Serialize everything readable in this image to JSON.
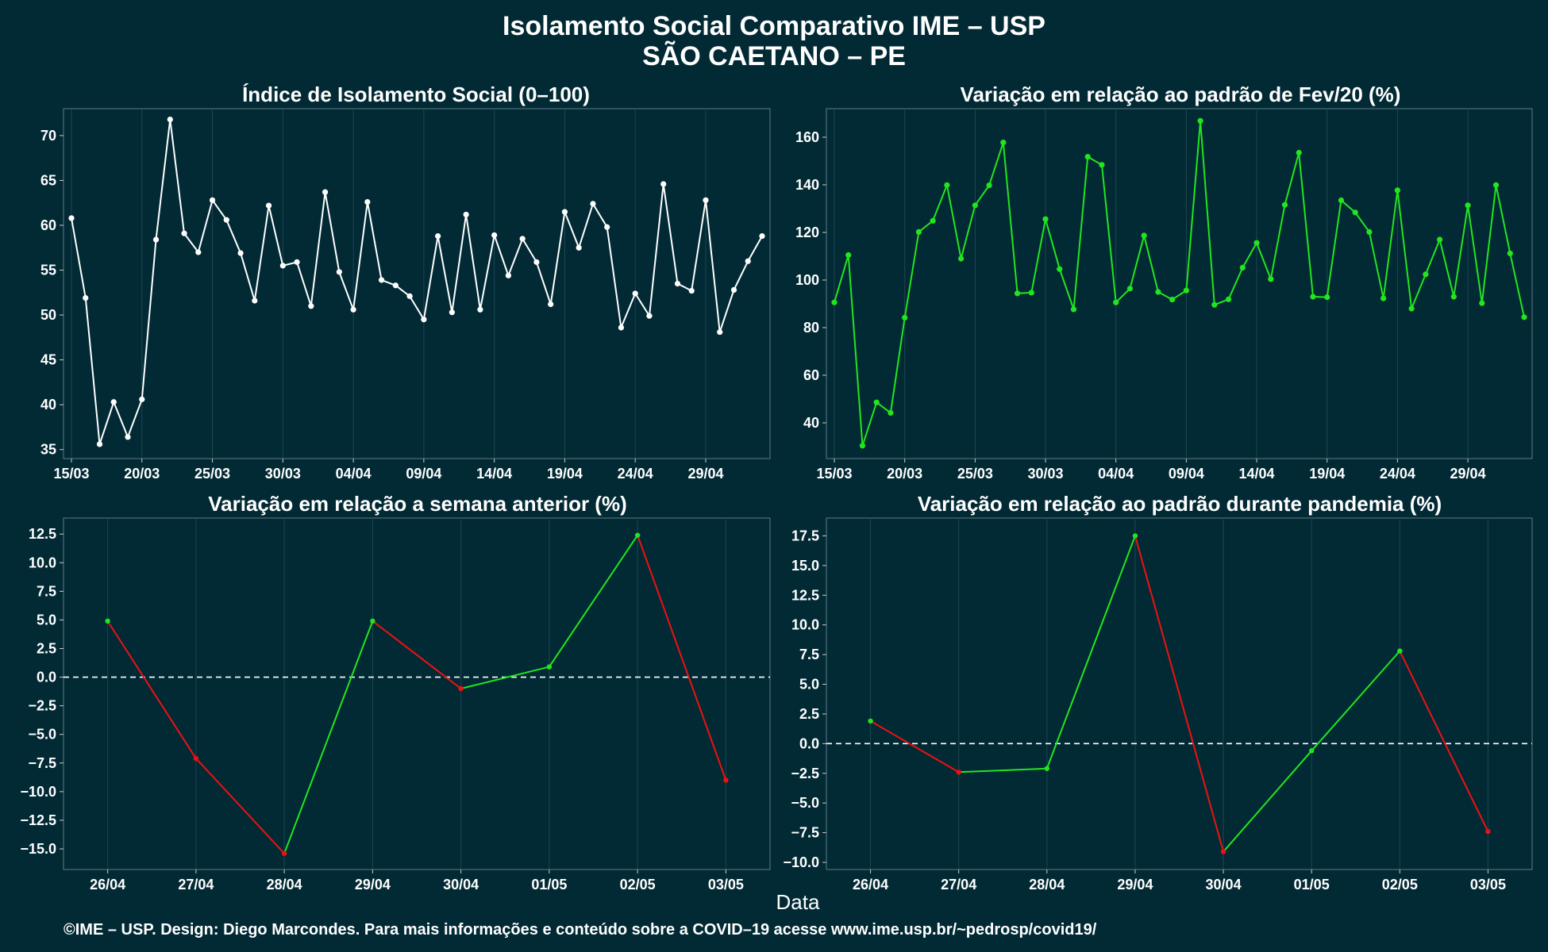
{
  "title": "Isolamento Social Comparativo IME – USP",
  "subtitle": "SÃO CAETANO – PE",
  "xlabel": "Data",
  "footer": "©IME – USP. Design: Diego Marcondes. Para mais informações e conteúdo sobre a COVID–19 acesse www.ime.usp.br/~pedrosp/covid19/",
  "colors": {
    "background": "#022a35",
    "panel": "#022a35",
    "grid": "#1d4652",
    "white": "#ffffff",
    "green": "#22e51e",
    "red": "#ee1111"
  },
  "chart_data": [
    {
      "type": "line",
      "title": "Índice de Isolamento Social (0–100)",
      "x": [
        "15/03",
        "16/03",
        "17/03",
        "18/03",
        "19/03",
        "20/03",
        "21/03",
        "22/03",
        "23/03",
        "24/03",
        "25/03",
        "26/03",
        "27/03",
        "28/03",
        "29/03",
        "30/03",
        "31/03",
        "01/04",
        "02/04",
        "03/04",
        "04/04",
        "05/04",
        "06/04",
        "07/04",
        "08/04",
        "09/04",
        "10/04",
        "11/04",
        "12/04",
        "13/04",
        "14/04",
        "15/04",
        "16/04",
        "17/04",
        "18/04",
        "19/04",
        "20/04",
        "21/04",
        "22/04",
        "23/04",
        "24/04",
        "25/04",
        "26/04",
        "27/04",
        "28/04",
        "29/04",
        "30/04",
        "01/05",
        "02/05",
        "03/05"
      ],
      "xticks": [
        "15/03",
        "20/03",
        "25/03",
        "30/03",
        "04/04",
        "09/04",
        "14/04",
        "19/04",
        "24/04",
        "29/04"
      ],
      "series": [
        {
          "color": "#ffffff",
          "values": [
            60.8,
            51.9,
            35.6,
            40.3,
            36.4,
            40.6,
            58.4,
            71.8,
            59.1,
            57.0,
            62.8,
            60.6,
            56.9,
            51.6,
            62.2,
            55.5,
            55.9,
            51.0,
            63.7,
            54.8,
            50.6,
            62.6,
            53.9,
            53.3,
            52.1,
            49.5,
            58.8,
            50.3,
            61.2,
            50.6,
            58.9,
            54.4,
            58.5,
            55.9,
            51.2,
            61.5,
            57.5,
            62.4,
            59.8,
            48.6,
            52.4,
            49.9,
            64.6,
            53.5,
            52.7,
            62.8,
            48.1,
            52.8,
            56.0,
            58.8
          ]
        }
      ],
      "ylim": [
        34,
        73
      ],
      "yticks": [
        "35",
        "40",
        "45",
        "50",
        "55",
        "60",
        "65",
        "70"
      ],
      "ytick_values": [
        35,
        40,
        45,
        50,
        55,
        60,
        65,
        70
      ]
    },
    {
      "type": "line",
      "title": "Variação em relação ao padrão de Fev/20 (%)",
      "x": [
        "15/03",
        "16/03",
        "17/03",
        "18/03",
        "19/03",
        "20/03",
        "21/03",
        "22/03",
        "23/03",
        "24/03",
        "25/03",
        "26/03",
        "27/03",
        "28/03",
        "29/03",
        "30/03",
        "31/03",
        "01/04",
        "02/04",
        "03/04",
        "04/04",
        "05/04",
        "06/04",
        "07/04",
        "08/04",
        "09/04",
        "10/04",
        "11/04",
        "12/04",
        "13/04",
        "14/04",
        "15/04",
        "16/04",
        "17/04",
        "18/04",
        "19/04",
        "20/04",
        "21/04",
        "22/04",
        "23/04",
        "24/04",
        "25/04",
        "26/04",
        "27/04",
        "28/04",
        "29/04",
        "30/04",
        "01/05",
        "02/05",
        "03/05"
      ],
      "xticks": [
        "15/03",
        "20/03",
        "25/03",
        "30/03",
        "04/04",
        "09/04",
        "14/04",
        "19/04",
        "24/04",
        "29/04"
      ],
      "series": [
        {
          "color": "#22e51e",
          "values": [
            90.6,
            110.5,
            30.4,
            48.6,
            44.2,
            84.2,
            120.2,
            124.9,
            139.9,
            109.0,
            131.4,
            139.8,
            157.8,
            94.4,
            94.7,
            125.6,
            104.6,
            87.7,
            151.8,
            148.4,
            90.6,
            96.4,
            118.7,
            95.0,
            91.8,
            95.6,
            166.9,
            89.6,
            91.9,
            105.2,
            115.6,
            100.4,
            131.6,
            153.5,
            93.0,
            92.8,
            133.5,
            128.4,
            120.2,
            92.3,
            137.7,
            88.0,
            102.4,
            117.0,
            93.0,
            131.4,
            90.3,
            139.9,
            111.2,
            84.4
          ]
        }
      ],
      "ylim": [
        25,
        172
      ],
      "yticks": [
        "40",
        "60",
        "80",
        "100",
        "120",
        "140",
        "160"
      ],
      "ytick_values": [
        40,
        60,
        80,
        100,
        120,
        140,
        160
      ]
    },
    {
      "type": "line",
      "title": "Variação em relação a semana anterior (%)",
      "x": [
        "26/04",
        "27/04",
        "28/04",
        "29/04",
        "30/04",
        "01/05",
        "02/05",
        "03/05"
      ],
      "xticks": [
        "26/04",
        "27/04",
        "28/04",
        "29/04",
        "30/04",
        "01/05",
        "02/05",
        "03/05"
      ],
      "series": [
        {
          "values": [
            4.9,
            -7.1,
            -15.4,
            4.9,
            -1.0,
            0.9,
            12.4,
            -9.0
          ]
        }
      ],
      "up_color": "#22e51e",
      "down_color": "#ee1111",
      "reference_line": 0,
      "ylim": [
        -16.8,
        13.9
      ],
      "yticks": [
        "12.5",
        "10.0",
        "7.5",
        "5.0",
        "2.5",
        "0.0",
        "−2.5",
        "−5.0",
        "−7.5",
        "−10.0",
        "−12.5",
        "−15.0"
      ],
      "ytick_values": [
        12.5,
        10,
        7.5,
        5,
        2.5,
        0,
        -2.5,
        -5,
        -7.5,
        -10,
        -12.5,
        -15
      ]
    },
    {
      "type": "line",
      "title": "Variação em relação ao padrão durante pandemia (%)",
      "x": [
        "26/04",
        "27/04",
        "28/04",
        "29/04",
        "30/04",
        "01/05",
        "02/05",
        "03/05"
      ],
      "xticks": [
        "26/04",
        "27/04",
        "28/04",
        "29/04",
        "30/04",
        "01/05",
        "02/05",
        "03/05"
      ],
      "series": [
        {
          "values": [
            1.9,
            -2.4,
            -2.1,
            17.5,
            -9.1,
            -0.6,
            7.8,
            -7.4
          ]
        }
      ],
      "up_color": "#22e51e",
      "down_color": "#ee1111",
      "reference_line": 0,
      "ylim": [
        -10.6,
        19.0
      ],
      "yticks": [
        "17.5",
        "15.0",
        "12.5",
        "10.0",
        "7.5",
        "5.0",
        "2.5",
        "0.0",
        "−2.5",
        "−5.0",
        "−7.5",
        "−10.0"
      ],
      "ytick_values": [
        17.5,
        15,
        12.5,
        10,
        7.5,
        5,
        2.5,
        0,
        -2.5,
        -5,
        -7.5,
        -10
      ]
    }
  ]
}
